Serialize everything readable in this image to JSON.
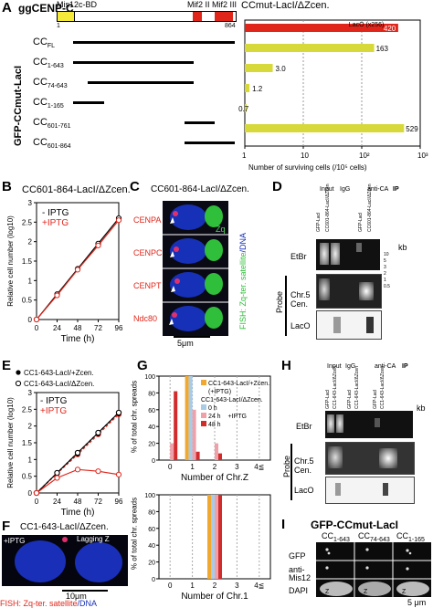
{
  "panel_letters": {
    "a": "A",
    "b": "B",
    "c": "C",
    "d": "D",
    "e": "E",
    "f": "F",
    "g": "G",
    "h": "H",
    "i": "I"
  },
  "panel_a": {
    "title": "ggCENP-C",
    "domain_label": "Mis12c-BD",
    "motif_labels": [
      "Mif2 II",
      "Mif2 III"
    ],
    "pos_start": "1",
    "pos_end": "864",
    "side_label": "GFP-CCmut-LacI",
    "constructs": [
      "CC",
      "CC",
      "CC",
      "CC",
      "CC",
      "CC"
    ],
    "construct_subs": [
      "FL",
      "1-643",
      "74-643",
      "1-165",
      "601-761",
      "601-864"
    ],
    "colors": {
      "domain": "#f5ea3a",
      "motif": "#e0261b",
      "bar": "#e0261b",
      "bar_alt": "#d7d93a"
    },
    "chart_data": {
      "type": "bar",
      "title": "CCmut-LacI/ΔZcen.",
      "xlabel": "Number of surviving cells (/10⁵ cells)",
      "x_scale": "log",
      "xlim": [
        1,
        1000
      ],
      "categories": [
        "CCFL",
        "CC1-643",
        "CC74-643",
        "CC1-165",
        "CC601-761",
        "CC601-864"
      ],
      "values": [
        420,
        163,
        3.0,
        1.2,
        0.7,
        529
      ],
      "value_labels": [
        "420",
        "163",
        "3.0",
        "1.2",
        "0.7",
        "529"
      ],
      "tick_labels": [
        "1",
        "10",
        "10²",
        "10³"
      ],
      "legend": "LacO (x256)"
    }
  },
  "panel_b": {
    "title": "CC601-864-LacI/ΔZcen.",
    "chart_data": {
      "type": "line",
      "x": [
        0,
        24,
        48,
        72,
        96
      ],
      "series": [
        {
          "name": "- IPTG",
          "values": [
            0.0,
            0.65,
            1.3,
            1.95,
            2.6
          ]
        },
        {
          "name": "+IPTG",
          "values": [
            0.0,
            0.62,
            1.28,
            1.9,
            2.55
          ]
        }
      ],
      "xlabel": "Time (h)",
      "ylabel": "Relative cell number (log10)",
      "xticks": [
        "0",
        "24",
        "48",
        "72",
        "96"
      ],
      "yticks": [
        "0",
        "0.5",
        "1",
        "1.5",
        "2",
        "2.5",
        "3"
      ],
      "ylim": [
        0,
        3
      ]
    }
  },
  "panel_c": {
    "title": "CC601-864-LacI/ΔZcen.",
    "row_labels": [
      "CENPA",
      "CENPC",
      "CENPT",
      "Ndc80"
    ],
    "zq_label": "Zq",
    "side_label_fish": "FISH: Zq-ter. satellite",
    "side_label_dna": "/DNA",
    "scale": "5μm"
  },
  "panel_d": {
    "headers": [
      "Input",
      "IgG",
      "anti-CA",
      "IP"
    ],
    "lane_labels": [
      "GFP-LacI",
      "CC601-864-LacI/ΔZcen",
      "GFP-LacI",
      "CC601-864-LacI/ΔZcen"
    ],
    "rows": [
      "EtBr",
      "Chr.5 Cen.",
      "LacO"
    ],
    "probe": "Probe",
    "kb": "kb",
    "kb_ticks": [
      "10",
      "5",
      "3",
      "2",
      "1",
      "0.5"
    ]
  },
  "panel_e": {
    "legend_1": "CC1-643-LacI/+Zcen.",
    "legend_2": "CC1-643-LacI/ΔZcen.",
    "chart_data": {
      "type": "line",
      "x": [
        0,
        24,
        48,
        72,
        96
      ],
      "series": [
        {
          "name": "CC1-643-LacI/+Zcen. - IPTG",
          "values": [
            0.0,
            0.6,
            1.2,
            1.8,
            2.4
          ]
        },
        {
          "name": "CC1-643-LacI/+Zcen. +IPTG",
          "values": [
            0.0,
            0.58,
            1.15,
            1.75,
            2.35
          ]
        },
        {
          "name": "CC1-643-LacI/ΔZcen. - IPTG",
          "values": [
            0.0,
            0.6,
            1.2,
            1.8,
            2.4
          ]
        },
        {
          "name": "CC1-643-LacI/ΔZcen. +IPTG",
          "values": [
            0.0,
            0.45,
            0.7,
            0.65,
            0.55
          ]
        }
      ],
      "xlabel": "Time (h)",
      "ylabel": "Relative cell number (log10)",
      "xticks": [
        "0",
        "24",
        "48",
        "72",
        "96"
      ],
      "yticks": [
        "0",
        "0.5",
        "1",
        "1.5",
        "2",
        "2.5",
        "3"
      ],
      "ylim": [
        0,
        3
      ],
      "legend_labels": [
        "- IPTG",
        "+IPTG"
      ]
    }
  },
  "panel_f": {
    "title": "CC1-643-LacI/ΔZcen.",
    "iptg": "+IPTG",
    "lagging": "Lagging Z",
    "scale": "10μm",
    "fish_label": "FISH: Zq-ter. satellite",
    "dna_label": "/DNA"
  },
  "panel_g": {
    "legend_1": "CC1-643-LacI/+Zcen.",
    "legend_1b": "(+IPTG)",
    "legend_2": "CC1-643-LacI/ΔZcen.",
    "legend_times": [
      "0 h",
      "24 h",
      "48 h"
    ],
    "legend_iptg": "+IPTG",
    "ylabel": "% of total chr. spreads",
    "chart_data": [
      {
        "type": "bar",
        "xlabel": "Number of Chr.Z",
        "categories": [
          "0",
          "1",
          "2",
          "3",
          "4≦"
        ],
        "series": [
          {
            "name": "CC1-643-LacI/+Zcen. (+IPTG)",
            "values": [
              0,
              100,
              0,
              0,
              0
            ]
          },
          {
            "name": "0 h",
            "values": [
              0,
              100,
              0,
              0,
              0
            ]
          },
          {
            "name": "24 h",
            "values": [
              20,
              60,
              20,
              0,
              0
            ]
          },
          {
            "name": "48 h",
            "values": [
              82,
              10,
              8,
              0,
              0
            ]
          }
        ],
        "yticks": [
          "0",
          "20",
          "40",
          "60",
          "80",
          "100"
        ],
        "ylim": [
          0,
          100
        ]
      },
      {
        "type": "bar",
        "xlabel": "Number of Chr.1",
        "categories": [
          "0",
          "1",
          "2",
          "3",
          "4≦"
        ],
        "series": [
          {
            "name": "CC1-643-LacI/+Zcen. (+IPTG)",
            "values": [
              0,
              0,
              100,
              0,
              0
            ]
          },
          {
            "name": "0 h",
            "values": [
              0,
              0,
              100,
              0,
              0
            ]
          },
          {
            "name": "24 h",
            "values": [
              0,
              0,
              100,
              0,
              0
            ]
          },
          {
            "name": "48 h",
            "values": [
              0,
              0,
              100,
              0,
              0
            ]
          }
        ],
        "yticks": [
          "0",
          "20",
          "40",
          "60",
          "80",
          "100"
        ],
        "ylim": [
          0,
          100
        ]
      }
    ],
    "colors": {
      "zcen": "#f0a830",
      "h0": "#a8cbe8",
      "h24": "#f0a0a8",
      "h48": "#d22b2b"
    }
  },
  "panel_h": {
    "headers": [
      "Input",
      "IgG",
      "anti-CA",
      "IP"
    ],
    "lane_labels": [
      "GFP-LacI",
      "CC1-643-LacI/ΔZcen",
      "GFP-LacI",
      "CC1-643-LacI/ΔZcen",
      "GFP-LacI",
      "CC1-643-LacI/ΔZcen"
    ],
    "rows": [
      "EtBr",
      "Chr.5 Cen.",
      "LacO"
    ],
    "probe": "Probe",
    "kb": "kb"
  },
  "panel_i": {
    "title": "GFP-CCmut-LacI",
    "columns": [
      "CC",
      "CC",
      "CC"
    ],
    "column_subs": [
      "1-643",
      "74-643",
      "1-165"
    ],
    "rows": [
      "GFP",
      "anti-Mis12",
      "DAPI"
    ],
    "z": "Z",
    "scale": "5 μm"
  }
}
